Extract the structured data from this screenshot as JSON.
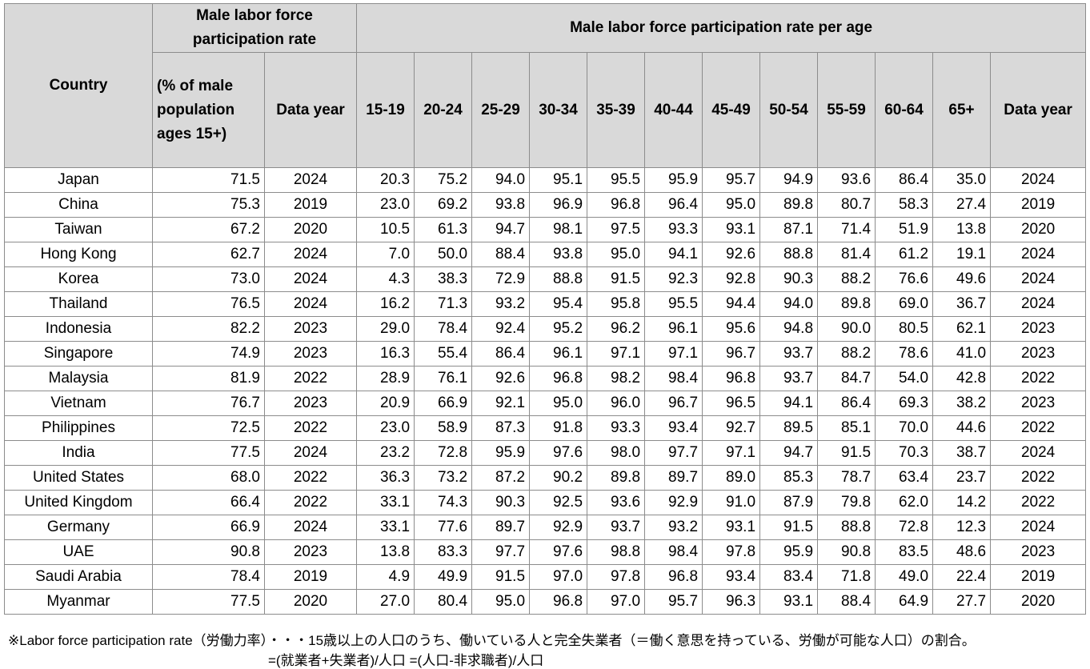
{
  "header": {
    "country": "Country",
    "rate_title": "Male labor force participation rate",
    "rate_unit": "(% of male population ages 15+)",
    "rate_year": "Data year",
    "age_title": "Male labor force participation rate per age",
    "ages": [
      "15-19",
      "20-24",
      "25-29",
      "30-34",
      "35-39",
      "40-44",
      "45-49",
      "50-54",
      "55-59",
      "60-64",
      "65+"
    ],
    "age_year": "Data year"
  },
  "table": {
    "rows": [
      [
        "Japan",
        "71.5",
        "2024",
        "20.3",
        "75.2",
        "94.0",
        "95.1",
        "95.5",
        "95.9",
        "95.7",
        "94.9",
        "93.6",
        "86.4",
        "35.0",
        "2024"
      ],
      [
        "China",
        "75.3",
        "2019",
        "23.0",
        "69.2",
        "93.8",
        "96.9",
        "96.8",
        "96.4",
        "95.0",
        "89.8",
        "80.7",
        "58.3",
        "27.4",
        "2019"
      ],
      [
        "Taiwan",
        "67.2",
        "2020",
        "10.5",
        "61.3",
        "94.7",
        "98.1",
        "97.5",
        "93.3",
        "93.1",
        "87.1",
        "71.4",
        "51.9",
        "13.8",
        "2020"
      ],
      [
        "Hong Kong",
        "62.7",
        "2024",
        "7.0",
        "50.0",
        "88.4",
        "93.8",
        "95.0",
        "94.1",
        "92.6",
        "88.8",
        "81.4",
        "61.2",
        "19.1",
        "2024"
      ],
      [
        "Korea",
        "73.0",
        "2024",
        "4.3",
        "38.3",
        "72.9",
        "88.8",
        "91.5",
        "92.3",
        "92.8",
        "90.3",
        "88.2",
        "76.6",
        "49.6",
        "2024"
      ],
      [
        "Thailand",
        "76.5",
        "2024",
        "16.2",
        "71.3",
        "93.2",
        "95.4",
        "95.8",
        "95.5",
        "94.4",
        "94.0",
        "89.8",
        "69.0",
        "36.7",
        "2024"
      ],
      [
        "Indonesia",
        "82.2",
        "2023",
        "29.0",
        "78.4",
        "92.4",
        "95.2",
        "96.2",
        "96.1",
        "95.6",
        "94.8",
        "90.0",
        "80.5",
        "62.1",
        "2023"
      ],
      [
        "Singapore",
        "74.9",
        "2023",
        "16.3",
        "55.4",
        "86.4",
        "96.1",
        "97.1",
        "97.1",
        "96.7",
        "93.7",
        "88.2",
        "78.6",
        "41.0",
        "2023"
      ],
      [
        "Malaysia",
        "81.9",
        "2022",
        "28.9",
        "76.1",
        "92.6",
        "96.8",
        "98.2",
        "98.4",
        "96.8",
        "93.7",
        "84.7",
        "54.0",
        "42.8",
        "2022"
      ],
      [
        "Vietnam",
        "76.7",
        "2023",
        "20.9",
        "66.9",
        "92.1",
        "95.0",
        "96.0",
        "96.7",
        "96.5",
        "94.1",
        "86.4",
        "69.3",
        "38.2",
        "2023"
      ],
      [
        "Philippines",
        "72.5",
        "2022",
        "23.0",
        "58.9",
        "87.3",
        "91.8",
        "93.3",
        "93.4",
        "92.7",
        "89.5",
        "85.1",
        "70.0",
        "44.6",
        "2022"
      ],
      [
        "India",
        "77.5",
        "2024",
        "23.2",
        "72.8",
        "95.9",
        "97.6",
        "98.0",
        "97.7",
        "97.1",
        "94.7",
        "91.5",
        "70.3",
        "38.7",
        "2024"
      ],
      [
        "United States",
        "68.0",
        "2022",
        "36.3",
        "73.2",
        "87.2",
        "90.2",
        "89.8",
        "89.7",
        "89.0",
        "85.3",
        "78.7",
        "63.4",
        "23.7",
        "2022"
      ],
      [
        "United Kingdom",
        "66.4",
        "2022",
        "33.1",
        "74.3",
        "90.3",
        "92.5",
        "93.6",
        "92.9",
        "91.0",
        "87.9",
        "79.8",
        "62.0",
        "14.2",
        "2022"
      ],
      [
        "Germany",
        "66.9",
        "2024",
        "33.1",
        "77.6",
        "89.7",
        "92.9",
        "93.7",
        "93.2",
        "93.1",
        "91.5",
        "88.8",
        "72.8",
        "12.3",
        "2024"
      ],
      [
        "UAE",
        "90.8",
        "2023",
        "13.8",
        "83.3",
        "97.7",
        "97.6",
        "98.8",
        "98.4",
        "97.8",
        "95.9",
        "90.8",
        "83.5",
        "48.6",
        "2023"
      ],
      [
        "Saudi Arabia",
        "78.4",
        "2019",
        "4.9",
        "49.9",
        "91.5",
        "97.0",
        "97.8",
        "96.8",
        "93.4",
        "83.4",
        "71.8",
        "49.0",
        "22.4",
        "2019"
      ],
      [
        "Myanmar",
        "77.5",
        "2020",
        "27.0",
        "80.4",
        "95.0",
        "96.8",
        "97.0",
        "95.7",
        "96.3",
        "93.1",
        "88.4",
        "64.9",
        "27.7",
        "2020"
      ]
    ]
  },
  "notes": [
    "※Labor force participation rate（労働力率）・・・15歳以上の人口のうち、働いている人と完全失業者（＝働く意思を持っている、労働が可能な人口）の割合。",
    "=(就業者+失業者)/人口 =(人口-非求職者)/人口"
  ]
}
